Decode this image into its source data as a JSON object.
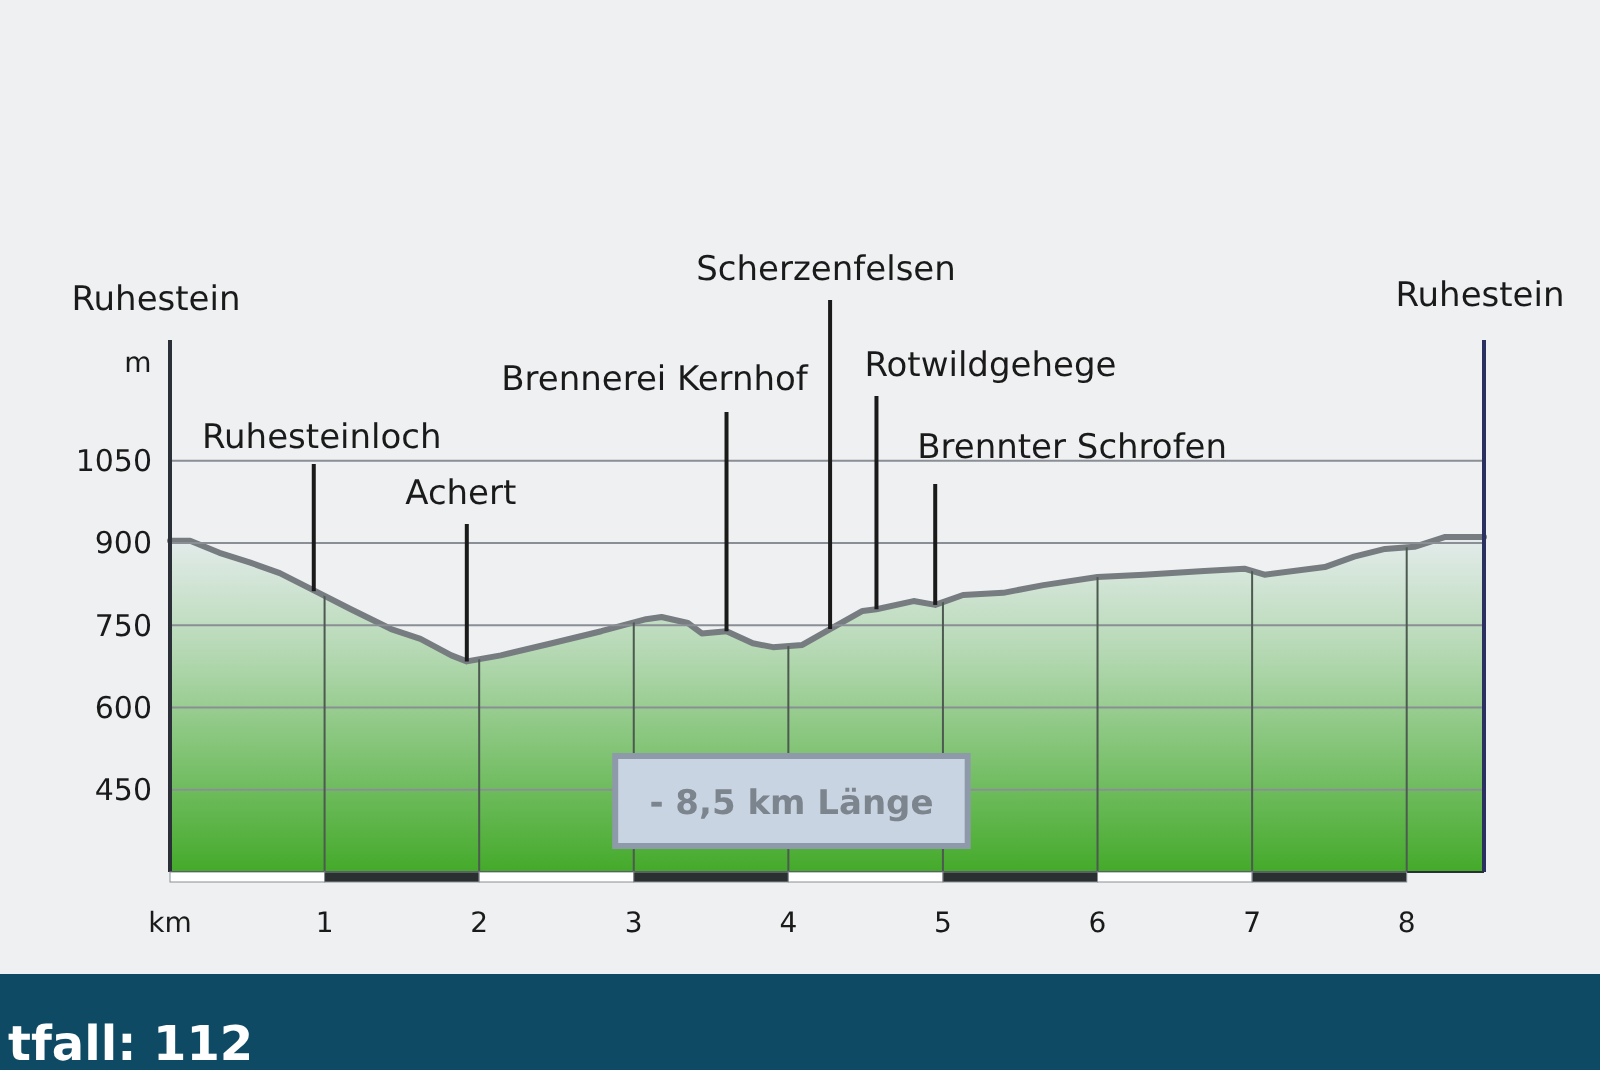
{
  "chart_data": {
    "type": "area",
    "xlabel": "km",
    "ylabel": "m",
    "xlim": [
      0,
      8.5
    ],
    "ylim": [
      300,
      1270
    ],
    "xticks": [
      1,
      2,
      3,
      4,
      5,
      6,
      7,
      8
    ],
    "yticks": [
      450,
      600,
      750,
      900,
      1050
    ],
    "grid": true,
    "series": [
      {
        "color": "#44aa2a",
        "x": [
          0,
          0.13,
          0.32,
          0.52,
          0.71,
          0.94,
          1.17,
          1.43,
          1.62,
          1.82,
          1.92,
          2.14,
          2.47,
          2.79,
          3.08,
          3.18,
          3.35,
          3.44,
          3.6,
          3.77,
          3.9,
          4.09,
          4.27,
          4.48,
          4.57,
          4.81,
          4.95,
          5.13,
          5.39,
          5.65,
          6.0,
          6.3,
          6.69,
          6.95,
          7.08,
          7.47,
          7.66,
          7.86,
          8.05,
          8.25,
          8.5
        ],
        "values": [
          904,
          904,
          882,
          864,
          845,
          812,
          779,
          743,
          725,
          695,
          684,
          695,
          717,
          739,
          761,
          765,
          754,
          735,
          739,
          717,
          710,
          714,
          743,
          776,
          779,
          794,
          787,
          805,
          809,
          823,
          838,
          842,
          849,
          853,
          842,
          856,
          875,
          889,
          893,
          911,
          911
        ]
      }
    ],
    "annotations": [
      "Ruhestein",
      {
        "text": "Ruhesteinloch",
        "x": 0.93,
        "y": 812
      },
      {
        "text": "Achert",
        "x": 1.92,
        "y": 684
      },
      {
        "text": "Brennerei Kernhof",
        "x": 3.6,
        "y": 739
      },
      {
        "text": "Scherzenfelsen",
        "x": 4.27,
        "y": 743
      },
      {
        "text": "Rotwildgehege",
        "x": 4.57,
        "y": 779
      },
      {
        "text": "Brennter Schrofen",
        "x": 4.95,
        "y": 787
      },
      "Ruhestein",
      "- 8,5 km Länge",
      "tfall: 112"
    ]
  }
}
